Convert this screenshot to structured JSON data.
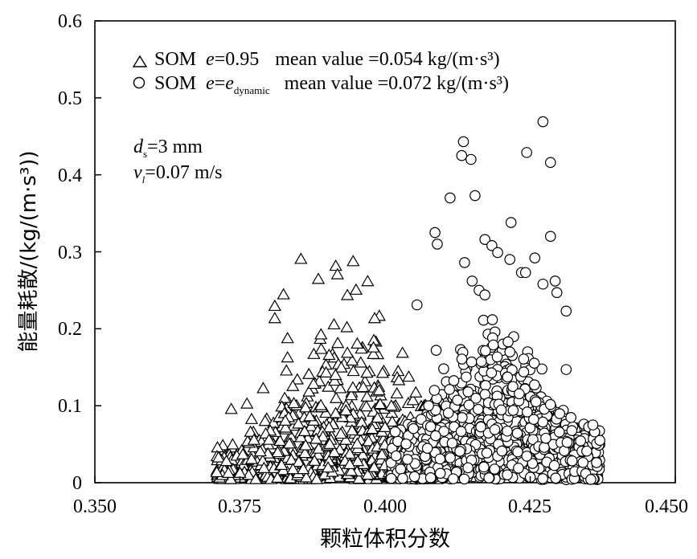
{
  "chart_data": {
    "type": "scatter",
    "title": "",
    "xlabel": "颗粒体积分数",
    "ylabel": "能量耗散/(kg/(m·s³))",
    "xlim": [
      0.35,
      0.45
    ],
    "ylim": [
      0,
      0.6
    ],
    "x_ticks": [
      "0.350",
      "0.375",
      "0.400",
      "0.425",
      "0.450"
    ],
    "y_ticks": [
      "0",
      "0.1",
      "0.2",
      "0.3",
      "0.4",
      "0.5",
      "0.6"
    ],
    "grid": false,
    "legend_position": "top-left",
    "legend": {
      "entry1": {
        "marker": "triangle",
        "name": "SOM",
        "e_var": "e",
        "e_value": "=0.95",
        "mean_text": "mean value =0.054 kg/(m·s³)"
      },
      "entry2": {
        "marker": "circle",
        "name": "SOM",
        "e_var": "e",
        "e_eq": "=",
        "e_sub_base": "e",
        "e_sub": "dynamic",
        "mean_text": "mean value =0.072 kg/(m·s³)"
      }
    },
    "annotations": {
      "ds_var": "d",
      "ds_sub": "s",
      "ds_value": "=3 mm",
      "vl_var": "v",
      "vl_sub": "l",
      "vl_value": "=0.07 m/s"
    },
    "series": [
      {
        "name": "SOM e=0.95",
        "marker": "triangle",
        "mean": 0.054,
        "points": [
          [
            0.3855,
            0.29
          ],
          [
            0.3945,
            0.287
          ],
          [
            0.3915,
            0.281
          ],
          [
            0.3918,
            0.27
          ],
          [
            0.3885,
            0.264
          ],
          [
            0.397,
            0.261
          ],
          [
            0.395,
            0.25
          ],
          [
            0.3935,
            0.243
          ],
          [
            0.3825,
            0.244
          ],
          [
            0.381,
            0.229
          ],
          [
            0.381,
            0.213
          ],
          [
            0.399,
            0.216
          ],
          [
            0.3982,
            0.213
          ],
          [
            0.3912,
            0.205
          ],
          [
            0.3832,
            0.187
          ],
          [
            0.3952,
            0.18
          ],
          [
            0.398,
            0.175
          ],
          [
            0.389,
            0.173
          ],
          [
            0.3935,
            0.168
          ],
          [
            0.3832,
            0.162
          ],
          [
            0.403,
            0.168
          ],
          [
            0.383,
            0.145
          ],
          [
            0.379,
            0.122
          ],
          [
            0.3762,
            0.102
          ],
          [
            0.3735,
            0.095
          ],
          [
            0.371,
            0.013
          ],
          [
            0.373,
            0.012
          ],
          [
            0.375,
            0.012
          ],
          [
            0.377,
            0.03
          ],
          [
            0.3785,
            0.04
          ],
          [
            0.38,
            0.055
          ],
          [
            0.377,
            0.082
          ]
        ]
      },
      {
        "name": "SOM e=e_dynamic",
        "marker": "circle",
        "mean": 0.072,
        "points": [
          [
            0.4272,
            0.469
          ],
          [
            0.4135,
            0.443
          ],
          [
            0.4132,
            0.425
          ],
          [
            0.4244,
            0.429
          ],
          [
            0.4285,
            0.416
          ],
          [
            0.4148,
            0.42
          ],
          [
            0.4112,
            0.37
          ],
          [
            0.4155,
            0.373
          ],
          [
            0.4217,
            0.338
          ],
          [
            0.4086,
            0.325
          ],
          [
            0.4285,
            0.32
          ],
          [
            0.4172,
            0.316
          ],
          [
            0.4184,
            0.308
          ],
          [
            0.409,
            0.31
          ],
          [
            0.4194,
            0.299
          ],
          [
            0.4258,
            0.292
          ],
          [
            0.4215,
            0.29
          ],
          [
            0.4137,
            0.286
          ],
          [
            0.4235,
            0.273
          ],
          [
            0.4242,
            0.273
          ],
          [
            0.4293,
            0.262
          ],
          [
            0.4272,
            0.258
          ],
          [
            0.4296,
            0.247
          ],
          [
            0.4055,
            0.231
          ],
          [
            0.4312,
            0.223
          ],
          [
            0.415,
            0.262
          ],
          [
            0.4162,
            0.25
          ],
          [
            0.4172,
            0.244
          ],
          [
            0.437,
            0.055
          ],
          [
            0.4361,
            0.066
          ],
          [
            0.4358,
            0.075
          ],
          [
            0.4312,
            0.147
          ],
          [
            0.4101,
            0.148
          ],
          [
            0.4085,
            0.12
          ],
          [
            0.4075,
            0.1
          ],
          [
            0.4088,
            0.172
          ]
        ]
      }
    ]
  }
}
